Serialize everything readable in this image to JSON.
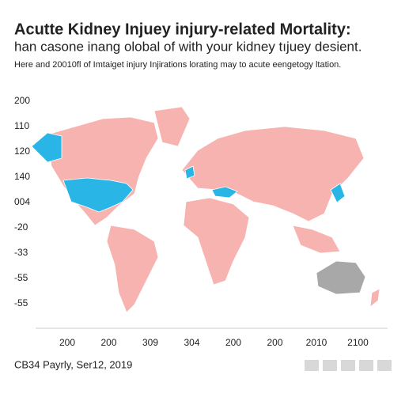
{
  "header": {
    "title": "Acutte Kidney Injuey injury-related Mortality:",
    "subtitle": "han casone inang olobal of with your kidney tıjuey desient.",
    "caption": "Here and 20010fl  of Imtaiget injury Injirations lorating may to acute eengetogy ltation."
  },
  "left_labels": [
    "200",
    "110",
    "120",
    "140",
    "004",
    "-20",
    "-33",
    "-55",
    "-55"
  ],
  "bottom_labels": [
    "200",
    "200",
    "309",
    "304",
    "200",
    "200",
    "2010",
    "2100"
  ],
  "footer": {
    "source": "CB34 Payrly, Ser12, 2019"
  }
}
